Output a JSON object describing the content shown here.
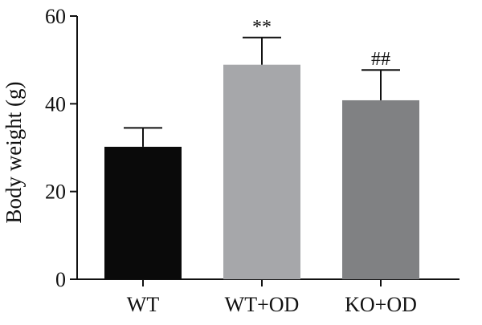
{
  "chart_data": {
    "type": "bar",
    "title": "",
    "xlabel": "",
    "ylabel": "Body weight (g)",
    "ylim": [
      0,
      60
    ],
    "yticks": [
      0,
      20,
      40,
      60
    ],
    "grid": false,
    "categories": [
      "WT",
      "WT+OD",
      "KO+OD"
    ],
    "values": [
      30.2,
      48.9,
      40.8
    ],
    "errors": [
      4.3,
      6.2,
      6.9
    ],
    "annotations": [
      "",
      "**",
      "##"
    ],
    "colors": [
      "#0a0a0a",
      "#a6a7aa",
      "#808183"
    ]
  }
}
